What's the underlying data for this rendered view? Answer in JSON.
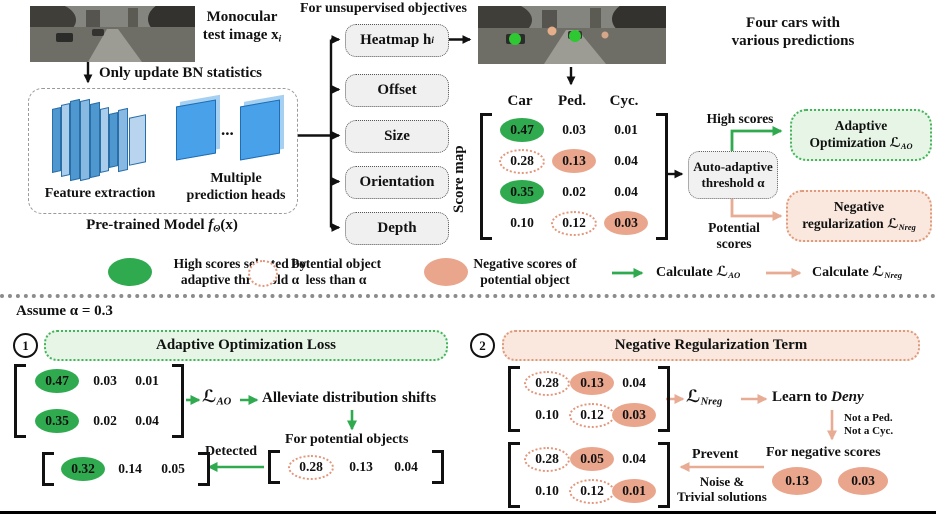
{
  "colors": {
    "green": "#2faa4f",
    "green-border": "#44b45c",
    "green-fill": "#e6f5e5",
    "salmon": "#e9a68d",
    "salmon-border": "#de9a7b",
    "salmon-fill": "#fae8de",
    "salmon-arrow": "#e8ab93"
  },
  "top": {
    "input_caption": {
      "line1": "Monocular",
      "line2": "test image x",
      "sub": "i"
    },
    "bn_note": "Only update BN statistics",
    "model_box": {
      "feature_label": "Feature extraction",
      "heads_line1": "Multiple",
      "heads_line2": "prediction heads",
      "dots": "..."
    },
    "pretrained": {
      "prefix": "Pre-trained Model ",
      "f": "f",
      "sub": "Θ",
      "suffix": "(x)"
    },
    "objectives_title": "For unsupervised objectives",
    "head_boxes": [
      {
        "label": "Heatmap h",
        "sub": "i"
      },
      {
        "label": "Offset",
        "sub": ""
      },
      {
        "label": "Size",
        "sub": ""
      },
      {
        "label": "Orientation",
        "sub": ""
      },
      {
        "label": "Depth",
        "sub": ""
      }
    ],
    "four_cars": {
      "line1": "Four cars with",
      "line2": "various predictions"
    }
  },
  "scoremap": {
    "label": "Score map",
    "columns": [
      "Car",
      "Ped.",
      "Cyc."
    ],
    "matrix": {
      "rows": [
        [
          "0.47",
          "0.03",
          "0.01"
        ],
        [
          "0.28",
          "0.13",
          "0.04"
        ],
        [
          "0.35",
          "0.02",
          "0.04"
        ],
        [
          "0.10",
          "0.12",
          "0.03"
        ]
      ],
      "marks": [
        [
          "high",
          "none",
          "none"
        ],
        [
          "potential",
          "negative",
          "none"
        ],
        [
          "high",
          "none",
          "none"
        ],
        [
          "none",
          "potential",
          "negative"
        ]
      ]
    }
  },
  "threshold_box": {
    "line1": "Auto-adaptive",
    "line2": "threshold α"
  },
  "branches": {
    "high_label": "High scores",
    "potential_line1": "Potential",
    "potential_line2": "scores",
    "ao_box": {
      "line1": "Adaptive",
      "line2": "Optimization ",
      "loss": "ℒ",
      "sub": "AO"
    },
    "nreg_box": {
      "line1": "Negative",
      "line2": "regularization ",
      "loss": "ℒ",
      "sub": "Nreg"
    }
  },
  "legend": {
    "high": {
      "line1": "High scores selected by",
      "line2": "adaptive threshold α"
    },
    "potential": {
      "line1": "Potential object",
      "line2": "less than α"
    },
    "negative": {
      "line1": "Negative scores of",
      "line2": "potential object"
    },
    "calc_ao": {
      "label": "Calculate ",
      "loss": "ℒ",
      "sub": "AO"
    },
    "calc_nreg": {
      "label": "Calculate ",
      "loss": "ℒ",
      "sub": "Nreg"
    }
  },
  "bottom": {
    "assume": "Assume α = 0.3",
    "panel1": {
      "num": "1",
      "title": "Adaptive Optimization Loss",
      "matrix_high": {
        "rows": [
          [
            "0.47",
            "0.03",
            "0.01"
          ],
          [
            "0.35",
            "0.02",
            "0.04"
          ]
        ],
        "marks": [
          [
            "high",
            "none",
            "none"
          ],
          [
            "high",
            "none",
            "none"
          ]
        ]
      },
      "loss": "ℒ",
      "loss_sub": "AO",
      "alleviate": "Alleviate distribution shifts",
      "for_potential": "For potential objects",
      "matrix_potential": {
        "rows": [
          [
            "0.28",
            "0.13",
            "0.04"
          ]
        ],
        "marks": [
          [
            "potential",
            "none",
            "none"
          ]
        ]
      },
      "detected": "Detected",
      "matrix_detected": {
        "rows": [
          [
            "0.32",
            "0.14",
            "0.05"
          ]
        ],
        "marks": [
          [
            "high",
            "none",
            "none"
          ]
        ]
      }
    },
    "panel2": {
      "num": "2",
      "title": "Negative Regularization Term",
      "matrix_neg": {
        "rows": [
          [
            "0.28",
            "0.13",
            "0.04"
          ],
          [
            "0.10",
            "0.12",
            "0.03"
          ]
        ],
        "marks": [
          [
            "potential",
            "negative",
            "none"
          ],
          [
            "none",
            "potential",
            "negative"
          ]
        ]
      },
      "loss": "ℒ",
      "loss_sub": "Nreg",
      "learn_prefix": "Learn to ",
      "learn_italic": "Deny",
      "not_ped": "Not a Ped.",
      "not_cyc": "Not a Cyc.",
      "for_negative": "For negative scores",
      "neg_values": [
        "0.13",
        "0.03"
      ],
      "prevent": "Prevent",
      "noise": "Noise &",
      "trivial": "Trivial solutions",
      "matrix_prevent": {
        "rows": [
          [
            "0.28",
            "0.05",
            "0.04"
          ],
          [
            "0.10",
            "0.12",
            "0.01"
          ]
        ],
        "marks": [
          [
            "potential",
            "negative",
            "none"
          ],
          [
            "none",
            "potential",
            "negative"
          ]
        ]
      }
    }
  }
}
